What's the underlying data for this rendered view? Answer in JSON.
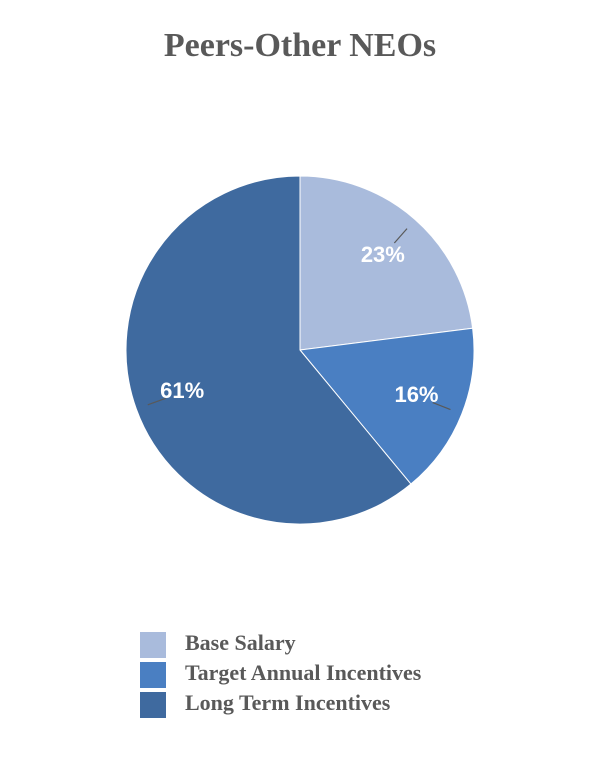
{
  "chart_data": {
    "type": "pie",
    "title": "Peers-Other NEOs",
    "categories": [
      "Base Salary",
      "Target Annual Incentives",
      "Long Term Incentives"
    ],
    "values": [
      23,
      16,
      61
    ],
    "value_labels": [
      "23%",
      "16%",
      "61%"
    ],
    "colors": [
      "#a9bbdc",
      "#4a7fc2",
      "#3f6a9f"
    ]
  }
}
